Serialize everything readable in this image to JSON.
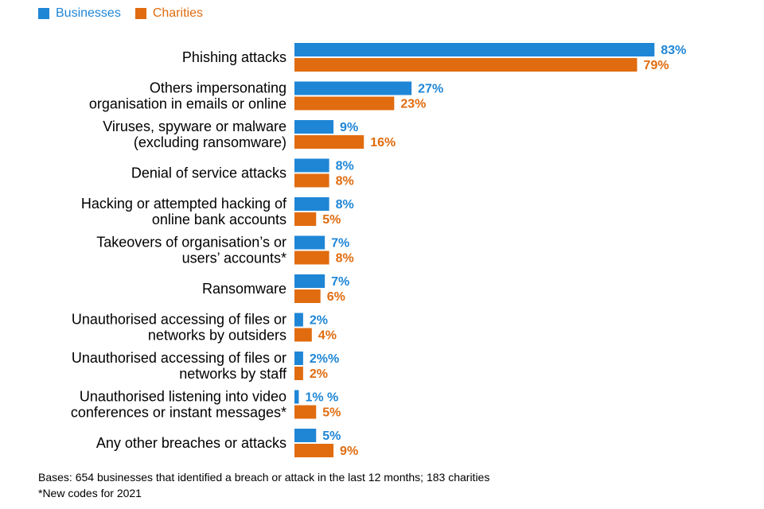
{
  "colors": {
    "businesses": "#1f86d6",
    "charities": "#e06c0f"
  },
  "legend": {
    "businesses_label": "Businesses",
    "charities_label": "Charities"
  },
  "chart_data": {
    "type": "bar",
    "orientation": "horizontal",
    "legend_position": "top-left",
    "title": "",
    "xlabel": "",
    "ylabel": "",
    "xlim": [
      0,
      100
    ],
    "grid": false,
    "categories": [
      [
        "Phishing attacks"
      ],
      [
        "Others impersonating",
        "organisation in emails or online"
      ],
      [
        "Viruses, spyware or malware",
        "(excluding ransomware)"
      ],
      [
        "Denial of service attacks"
      ],
      [
        "Hacking or attempted hacking of",
        "online bank accounts"
      ],
      [
        "Takeovers of organisation’s or",
        "users’ accounts*"
      ],
      [
        "Ransomware"
      ],
      [
        "Unauthorised accessing of files or",
        "networks by outsiders"
      ],
      [
        "Unauthorised accessing of files or",
        "networks by staff"
      ],
      [
        "Unauthorised listening into video",
        "conferences or instant messages*"
      ],
      [
        "Any other breaches or attacks"
      ]
    ],
    "series": [
      {
        "name": "Businesses",
        "values": [
          83,
          27,
          9,
          8,
          8,
          7,
          7,
          2,
          2,
          1,
          5
        ],
        "labels": [
          "83%",
          "27%",
          "9%",
          "8%",
          "8%",
          "7%",
          "7%",
          "2%",
          "2%%",
          "1%  %",
          "5%"
        ]
      },
      {
        "name": "Charities",
        "values": [
          79,
          23,
          16,
          8,
          5,
          8,
          6,
          4,
          2,
          5,
          9
        ],
        "labels": [
          "79%",
          "23%",
          "16%",
          "8%",
          "5%",
          "8%",
          "6%",
          "4%",
          "2%",
          "5%",
          "9%"
        ]
      }
    ]
  },
  "footnotes": {
    "bases": "Bases: 654 businesses that identified a breach or attack in the last 12 months; 183 charities",
    "new_codes": "*New codes for 2021"
  }
}
